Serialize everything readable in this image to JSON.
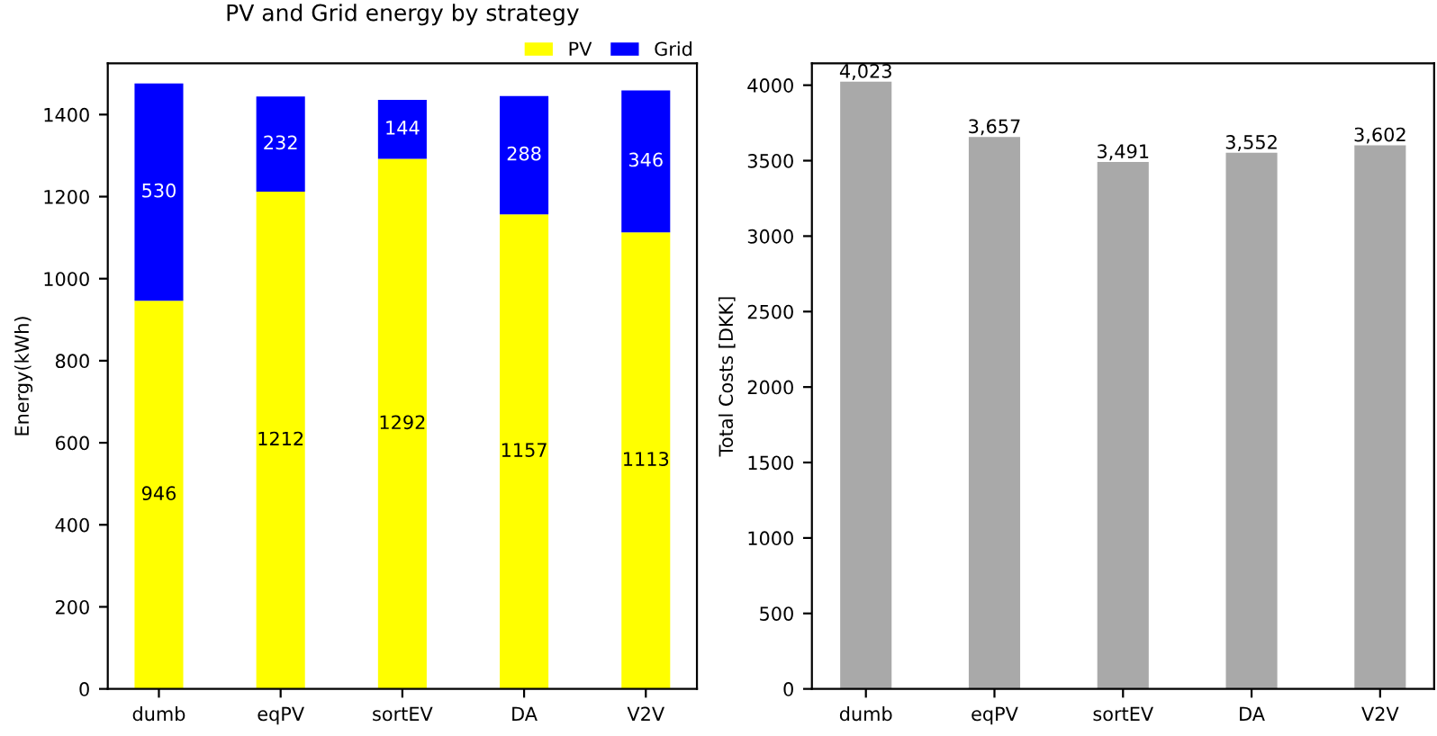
{
  "chart_data": [
    {
      "type": "bar",
      "title": "PV and Grid energy by strategy",
      "ylabel": "Energy(kWh)",
      "categories": [
        "dumb",
        "eqPV",
        "sortEV",
        "DA",
        "V2V"
      ],
      "stacked": true,
      "data_labels": true,
      "legend": "top right",
      "series": [
        {
          "name": "PV",
          "color": "#ffff00",
          "values": [
            946,
            1212,
            1292,
            1157,
            1113
          ]
        },
        {
          "name": "Grid",
          "color": "#0000ff",
          "values": [
            530,
            232,
            144,
            288,
            346
          ]
        }
      ],
      "ylim": [
        0,
        1525
      ],
      "yticks": [
        0,
        200,
        400,
        600,
        800,
        1000,
        1200,
        1400
      ],
      "grid": false
    },
    {
      "type": "bar",
      "ylabel": "Total Costs [DKK]",
      "categories": [
        "dumb",
        "eqPV",
        "sortEV",
        "DA",
        "V2V"
      ],
      "values": [
        4023,
        3657,
        3491,
        3552,
        3602
      ],
      "value_labels": [
        "4,023",
        "3,657",
        "3,491",
        "3,552",
        "3,602"
      ],
      "color": "#a9a9a9",
      "ylim": [
        0,
        4145
      ],
      "yticks": [
        0,
        500,
        1000,
        1500,
        2000,
        2500,
        3000,
        3500,
        4000
      ],
      "grid": false
    }
  ]
}
